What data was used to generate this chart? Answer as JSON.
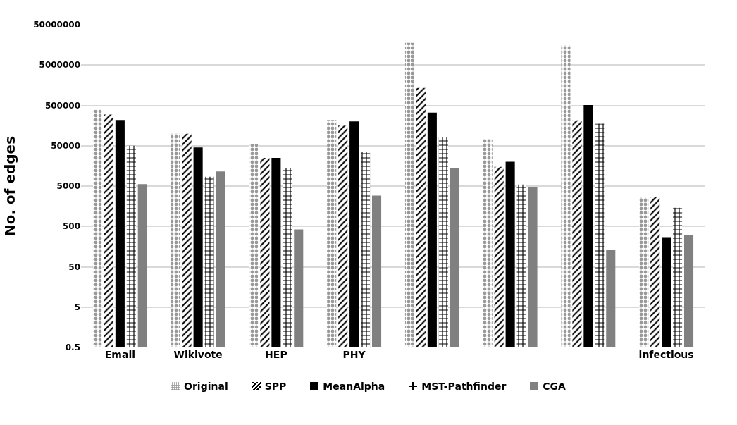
{
  "chart_data": {
    "type": "bar",
    "ylabel": "No. of edges",
    "categories": [
      "Email",
      "Wikivote",
      "HEP",
      "PHY",
      null,
      null,
      null,
      "infectious"
    ],
    "series": [
      {
        "name": "Original",
        "color": "#999999",
        "values": [
          390000,
          99000,
          55000,
          218000,
          17700000,
          74000,
          15500000,
          2700
        ]
      },
      {
        "name": "SPP",
        "color": "#000000",
        "values": [
          295000,
          99000,
          25000,
          158000,
          1350000,
          15000,
          213000,
          2700
        ]
      },
      {
        "name": "MeanAlpha",
        "color": "#000000",
        "values": [
          218000,
          45000,
          25000,
          200000,
          330000,
          20000,
          510000,
          270
        ]
      },
      {
        "name": "MST-Pathfinder",
        "color": "#000000",
        "values": [
          50000,
          8500,
          13800,
          34500,
          83000,
          5500,
          175000,
          1450
        ]
      },
      {
        "name": "CGA",
        "color": "#808080",
        "values": [
          5600,
          11500,
          420,
          2900,
          14200,
          4800,
          130,
          310
        ]
      }
    ],
    "log": "y",
    "ylim": [
      0.5,
      50000000
    ],
    "yticks": [
      0.5,
      5,
      50,
      500,
      5000,
      50000,
      500000,
      5000000,
      50000000
    ],
    "grid": "y",
    "legend": "bottom"
  }
}
